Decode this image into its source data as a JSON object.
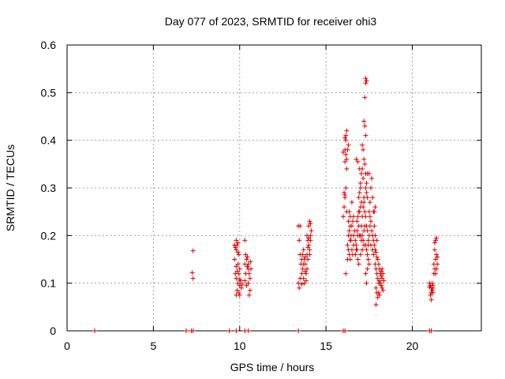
{
  "chart_data": {
    "type": "scatter",
    "title": "Day 077 of 2023, SRMTID for receiver ohi3",
    "xlabel": "GPS time / hours",
    "ylabel": "SRMTID / TECUs",
    "xlim": [
      0,
      24
    ],
    "ylim": [
      0,
      0.6
    ],
    "xticks": [
      0,
      5,
      10,
      15,
      20
    ],
    "yticks": [
      0,
      0.1,
      0.2,
      0.3,
      0.4,
      0.5,
      0.6
    ],
    "xtick_labels": [
      "0",
      "5",
      "10",
      "15",
      "20"
    ],
    "ytick_labels": [
      "0",
      "0.1",
      "0.2",
      "0.3",
      "0.4",
      "0.5",
      "0.6"
    ],
    "grid": true,
    "marker": "+",
    "series": [
      {
        "name": "SRMTID",
        "color": "#e00000",
        "points": [
          [
            1.6,
            0
          ],
          [
            6.9,
            0
          ],
          [
            7.2,
            0
          ],
          [
            7.3,
            0
          ],
          [
            9.4,
            0
          ],
          [
            9.8,
            0
          ],
          [
            10.3,
            0
          ],
          [
            10.5,
            0
          ],
          [
            13.4,
            0
          ],
          [
            16.0,
            0
          ],
          [
            16.1,
            0
          ],
          [
            21.0,
            0
          ],
          [
            21.1,
            0
          ],
          [
            7.3,
            0.168
          ],
          [
            7.25,
            0.122
          ],
          [
            7.3,
            0.11
          ],
          [
            9.7,
            0.18
          ],
          [
            9.75,
            0.175
          ],
          [
            9.8,
            0.17
          ],
          [
            9.85,
            0.18
          ],
          [
            9.7,
            0.15
          ],
          [
            9.8,
            0.135
          ],
          [
            9.75,
            0.12
          ],
          [
            9.85,
            0.125
          ],
          [
            9.9,
            0.14
          ],
          [
            9.95,
            0.12
          ],
          [
            9.8,
            0.11
          ],
          [
            9.9,
            0.1
          ],
          [
            10.0,
            0.095
          ],
          [
            9.85,
            0.085
          ],
          [
            9.95,
            0.08
          ],
          [
            10.0,
            0.075
          ],
          [
            9.8,
            0.075
          ],
          [
            10.05,
            0.105
          ],
          [
            10.1,
            0.09
          ],
          [
            9.9,
            0.185
          ],
          [
            9.95,
            0.16
          ],
          [
            10.0,
            0.13
          ],
          [
            9.8,
            0.19
          ],
          [
            9.9,
            0.165
          ],
          [
            10.15,
            0.098
          ],
          [
            10.0,
            0.108
          ],
          [
            10.3,
            0.19
          ],
          [
            10.35,
            0.16
          ],
          [
            10.4,
            0.15
          ],
          [
            10.3,
            0.14
          ],
          [
            10.45,
            0.135
          ],
          [
            10.5,
            0.13
          ],
          [
            10.35,
            0.12
          ],
          [
            10.55,
            0.12
          ],
          [
            10.6,
            0.11
          ],
          [
            10.5,
            0.1
          ],
          [
            10.4,
            0.095
          ],
          [
            10.6,
            0.085
          ],
          [
            10.55,
            0.075
          ],
          [
            10.65,
            0.13
          ],
          [
            10.45,
            0.155
          ],
          [
            10.3,
            0.105
          ],
          [
            10.5,
            0.14
          ],
          [
            10.62,
            0.145
          ],
          [
            13.4,
            0.22
          ],
          [
            13.5,
            0.22
          ],
          [
            13.45,
            0.19
          ],
          [
            13.5,
            0.16
          ],
          [
            13.6,
            0.15
          ],
          [
            13.55,
            0.14
          ],
          [
            13.4,
            0.1
          ],
          [
            13.45,
            0.09
          ],
          [
            13.5,
            0.11
          ],
          [
            13.6,
            0.12
          ],
          [
            13.65,
            0.13
          ],
          [
            13.7,
            0.11
          ],
          [
            13.75,
            0.15
          ],
          [
            13.8,
            0.155
          ],
          [
            13.65,
            0.16
          ],
          [
            13.7,
            0.17
          ],
          [
            13.8,
            0.14
          ],
          [
            13.85,
            0.12
          ],
          [
            13.9,
            0.13
          ],
          [
            13.95,
            0.15
          ],
          [
            13.75,
            0.1
          ],
          [
            13.85,
            0.105
          ],
          [
            13.9,
            0.16
          ],
          [
            13.6,
            0.098
          ],
          [
            13.7,
            0.14
          ],
          [
            13.8,
            0.125
          ],
          [
            13.9,
            0.2
          ],
          [
            14.0,
            0.22
          ],
          [
            14.05,
            0.23
          ],
          [
            14.1,
            0.225
          ],
          [
            13.95,
            0.19
          ],
          [
            14.0,
            0.18
          ],
          [
            14.05,
            0.17
          ],
          [
            14.1,
            0.2
          ],
          [
            14.15,
            0.21
          ],
          [
            14.0,
            0.195
          ],
          [
            14.1,
            0.19
          ],
          [
            14.05,
            0.16
          ],
          [
            13.95,
            0.175
          ],
          [
            16.0,
            0.24
          ],
          [
            16.05,
            0.26
          ],
          [
            16.1,
            0.28
          ],
          [
            16.05,
            0.29
          ],
          [
            16.1,
            0.285
          ],
          [
            16.15,
            0.3
          ],
          [
            16.0,
            0.375
          ],
          [
            16.1,
            0.38
          ],
          [
            16.15,
            0.37
          ],
          [
            16.2,
            0.36
          ],
          [
            16.1,
            0.355
          ],
          [
            16.2,
            0.34
          ],
          [
            16.1,
            0.405
          ],
          [
            16.15,
            0.41
          ],
          [
            16.2,
            0.42
          ],
          [
            16.15,
            0.4
          ],
          [
            16.25,
            0.38
          ],
          [
            16.3,
            0.39
          ],
          [
            16.2,
            0.25
          ],
          [
            16.15,
            0.12
          ],
          [
            16.25,
            0.18
          ],
          [
            16.3,
            0.2
          ],
          [
            16.35,
            0.21
          ],
          [
            16.4,
            0.19
          ],
          [
            16.45,
            0.2
          ],
          [
            16.5,
            0.17
          ],
          [
            16.55,
            0.16
          ],
          [
            16.6,
            0.18
          ],
          [
            16.3,
            0.17
          ],
          [
            16.35,
            0.16
          ],
          [
            16.4,
            0.15
          ],
          [
            16.45,
            0.19
          ],
          [
            16.5,
            0.22
          ],
          [
            16.55,
            0.23
          ],
          [
            16.6,
            0.24
          ],
          [
            16.3,
            0.23
          ],
          [
            16.4,
            0.24
          ],
          [
            16.5,
            0.27
          ],
          [
            16.6,
            0.2
          ],
          [
            16.65,
            0.21
          ],
          [
            16.4,
            0.22
          ],
          [
            16.25,
            0.15
          ],
          [
            16.35,
            0.25
          ],
          [
            16.7,
            0.16
          ],
          [
            16.75,
            0.18
          ],
          [
            16.8,
            0.21
          ],
          [
            16.85,
            0.2
          ],
          [
            16.9,
            0.22
          ],
          [
            16.95,
            0.25
          ],
          [
            17.0,
            0.26
          ],
          [
            17.05,
            0.27
          ],
          [
            16.8,
            0.23
          ],
          [
            16.85,
            0.24
          ],
          [
            16.9,
            0.28
          ],
          [
            16.95,
            0.29
          ],
          [
            17.0,
            0.3
          ],
          [
            16.75,
            0.36
          ],
          [
            16.85,
            0.355
          ],
          [
            16.95,
            0.34
          ],
          [
            17.0,
            0.31
          ],
          [
            16.9,
            0.25
          ],
          [
            17.05,
            0.33
          ],
          [
            17.1,
            0.34
          ],
          [
            17.15,
            0.32
          ],
          [
            17.0,
            0.2
          ],
          [
            17.05,
            0.19
          ],
          [
            16.8,
            0.17
          ],
          [
            16.85,
            0.15
          ],
          [
            16.9,
            0.14
          ],
          [
            17.0,
            0.16
          ],
          [
            17.1,
            0.17
          ],
          [
            17.15,
            0.19
          ],
          [
            17.2,
            0.21
          ],
          [
            17.1,
            0.24
          ],
          [
            17.15,
            0.26
          ],
          [
            17.2,
            0.28
          ],
          [
            17.25,
            0.22
          ],
          [
            16.7,
            0.19
          ],
          [
            16.75,
            0.17
          ],
          [
            17.05,
            0.22
          ],
          [
            17.1,
            0.2
          ],
          [
            16.95,
            0.2
          ],
          [
            17.2,
            0.18
          ],
          [
            17.3,
            0.53
          ],
          [
            17.35,
            0.525
          ],
          [
            17.3,
            0.52
          ],
          [
            17.25,
            0.49
          ],
          [
            17.2,
            0.44
          ],
          [
            17.25,
            0.43
          ],
          [
            17.3,
            0.41
          ],
          [
            17.1,
            0.39
          ],
          [
            17.15,
            0.38
          ],
          [
            17.2,
            0.36
          ],
          [
            17.25,
            0.35
          ],
          [
            17.3,
            0.33
          ],
          [
            17.35,
            0.31
          ],
          [
            17.3,
            0.3
          ],
          [
            17.35,
            0.29
          ],
          [
            17.4,
            0.28
          ],
          [
            17.2,
            0.27
          ],
          [
            17.25,
            0.25
          ],
          [
            17.3,
            0.24
          ],
          [
            17.35,
            0.22
          ],
          [
            17.4,
            0.21
          ],
          [
            17.45,
            0.19
          ],
          [
            17.3,
            0.18
          ],
          [
            17.35,
            0.17
          ],
          [
            17.4,
            0.16
          ],
          [
            17.45,
            0.15
          ],
          [
            17.5,
            0.14
          ],
          [
            17.4,
            0.13
          ],
          [
            17.3,
            0.12
          ],
          [
            17.35,
            0.1
          ],
          [
            17.45,
            0.18
          ],
          [
            17.5,
            0.2
          ],
          [
            17.55,
            0.22
          ],
          [
            17.5,
            0.25
          ],
          [
            17.55,
            0.27
          ],
          [
            17.6,
            0.3
          ],
          [
            17.65,
            0.32
          ],
          [
            17.5,
            0.33
          ],
          [
            17.55,
            0.24
          ],
          [
            17.6,
            0.23
          ],
          [
            17.65,
            0.21
          ],
          [
            17.7,
            0.2
          ],
          [
            17.75,
            0.19
          ],
          [
            17.6,
            0.18
          ],
          [
            17.7,
            0.17
          ],
          [
            17.75,
            0.16
          ],
          [
            17.4,
            0.33
          ],
          [
            17.8,
            0.22
          ],
          [
            17.85,
            0.2
          ],
          [
            17.8,
            0.18
          ],
          [
            17.85,
            0.17
          ],
          [
            17.9,
            0.165
          ],
          [
            17.95,
            0.155
          ],
          [
            18.0,
            0.15
          ],
          [
            17.85,
            0.14
          ],
          [
            17.9,
            0.13
          ],
          [
            17.95,
            0.12
          ],
          [
            18.0,
            0.11
          ],
          [
            18.05,
            0.1
          ],
          [
            17.9,
            0.09
          ],
          [
            17.95,
            0.08
          ],
          [
            18.0,
            0.07
          ],
          [
            17.9,
            0.055
          ],
          [
            17.8,
            0.25
          ],
          [
            17.85,
            0.26
          ],
          [
            17.7,
            0.28
          ],
          [
            17.75,
            0.25
          ],
          [
            18.05,
            0.14
          ],
          [
            18.1,
            0.13
          ],
          [
            18.15,
            0.12
          ],
          [
            18.2,
            0.115
          ],
          [
            18.25,
            0.11
          ],
          [
            18.1,
            0.105
          ],
          [
            18.15,
            0.1
          ],
          [
            18.2,
            0.095
          ],
          [
            18.25,
            0.09
          ],
          [
            18.3,
            0.085
          ],
          [
            18.2,
            0.125
          ],
          [
            18.3,
            0.12
          ],
          [
            18.25,
            0.13
          ],
          [
            18.35,
            0.105
          ],
          [
            18.05,
            0.08
          ],
          [
            18.1,
            0.075
          ],
          [
            17.95,
            0.19
          ],
          [
            21.0,
            0.1
          ],
          [
            21.05,
            0.095
          ],
          [
            21.1,
            0.09
          ],
          [
            21.15,
            0.085
          ],
          [
            21.2,
            0.08
          ],
          [
            21.05,
            0.075
          ],
          [
            21.1,
            0.065
          ],
          [
            21.15,
            0.1
          ],
          [
            21.2,
            0.095
          ],
          [
            21.1,
            0.08
          ],
          [
            21.0,
            0.092
          ],
          [
            21.2,
            0.09
          ],
          [
            21.25,
            0.12
          ],
          [
            21.3,
            0.13
          ],
          [
            21.35,
            0.15
          ],
          [
            21.4,
            0.16
          ],
          [
            21.3,
            0.17
          ],
          [
            21.35,
            0.19
          ],
          [
            21.4,
            0.195
          ],
          [
            21.25,
            0.14
          ],
          [
            21.35,
            0.12
          ],
          [
            21.4,
            0.13
          ],
          [
            21.45,
            0.14
          ],
          [
            21.3,
            0.185
          ],
          [
            21.45,
            0.155
          ]
        ]
      }
    ]
  }
}
